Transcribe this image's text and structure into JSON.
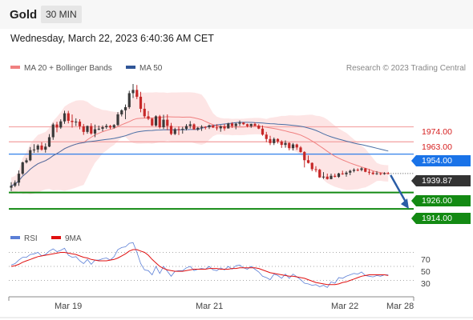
{
  "header": {
    "title": "Gold",
    "timeframe": "30 MIN",
    "datetime": "Wednesday, March 22, 2023 6:40:36 AM CET"
  },
  "legend": {
    "ma20_bb": "MA 20 + Bollinger Bands",
    "ma50": "MA 50",
    "rsi": "RSI",
    "ma9": "9MA"
  },
  "copyright": "Research © 2023 Trading Central",
  "colors": {
    "up": "#3a3a3a",
    "down": "#c62828",
    "ma20": "#f08080",
    "band": "#fde0e0",
    "ma50": "#4a6fa5",
    "resistance": "#f4a8a8",
    "pivot": "#1a73e8",
    "support": "#138a13",
    "rsi": "#5b7fd6",
    "rsi_ma": "#e01010",
    "arrow": "#2b5da6",
    "last": "#333333"
  },
  "chart_data": {
    "type": "candlestick",
    "instrument": "Gold",
    "interval": "30 MIN",
    "ylim": [
      1900,
      2010
    ],
    "x_ticks": [
      "Mar 19",
      "Mar 21",
      "Mar 22",
      "Mar 28"
    ],
    "levels": [
      {
        "value": 1974.0,
        "label": "1974.00",
        "kind": "resistance"
      },
      {
        "value": 1963.0,
        "label": "1963.00",
        "kind": "resistance"
      },
      {
        "value": 1954.0,
        "label": "1954.00",
        "kind": "pivot"
      },
      {
        "value": 1926.0,
        "label": "1926.00",
        "kind": "support"
      },
      {
        "value": 1914.0,
        "label": "1914.00",
        "kind": "support"
      }
    ],
    "last_price": {
      "value": 1939.87,
      "label": "1939.87"
    },
    "candles": [
      [
        1929.5,
        1933.5,
        1927.0,
        1930.9
      ],
      [
        1930.9,
        1934.8,
        1929.9,
        1933.2
      ],
      [
        1933.2,
        1942.1,
        1930.9,
        1939.7
      ],
      [
        1939.7,
        1948.5,
        1938.8,
        1948.0
      ],
      [
        1948.0,
        1951.1,
        1947.2,
        1949.5
      ],
      [
        1949.5,
        1959.2,
        1948.8,
        1956.9
      ],
      [
        1956.9,
        1961.3,
        1955.0,
        1957.4
      ],
      [
        1957.4,
        1961.3,
        1955.2,
        1960.3
      ],
      [
        1960.3,
        1962.7,
        1956.5,
        1957.3
      ],
      [
        1957.3,
        1961.9,
        1955.1,
        1959.5
      ],
      [
        1959.5,
        1968.7,
        1959.1,
        1966.4
      ],
      [
        1966.4,
        1976.9,
        1964.5,
        1975.7
      ],
      [
        1975.7,
        1977.7,
        1970.0,
        1973.5
      ],
      [
        1973.5,
        1979.5,
        1972.5,
        1978.0
      ],
      [
        1978.0,
        1985.8,
        1976.2,
        1983.9
      ],
      [
        1983.9,
        1985.7,
        1976.5,
        1978.4
      ],
      [
        1978.4,
        1983.0,
        1973.4,
        1977.5
      ],
      [
        1977.5,
        1980.2,
        1974.6,
        1977.8
      ],
      [
        1977.8,
        1979.6,
        1972.2,
        1974.4
      ],
      [
        1974.4,
        1976.1,
        1968.1,
        1970.3
      ],
      [
        1970.3,
        1975.0,
        1969.0,
        1974.6
      ],
      [
        1974.6,
        1976.6,
        1968.2,
        1969.1
      ],
      [
        1969.1,
        1975.6,
        1966.4,
        1972.2
      ],
      [
        1972.2,
        1974.9,
        1971.5,
        1972.6
      ],
      [
        1972.6,
        1975.0,
        1970.7,
        1973.7
      ],
      [
        1973.7,
        1976.1,
        1972.5,
        1974.7
      ],
      [
        1974.7,
        1975.4,
        1972.3,
        1973.5
      ],
      [
        1973.5,
        1976.0,
        1972.8,
        1975.3
      ],
      [
        1975.3,
        1984.7,
        1974.6,
        1983.1
      ],
      [
        1983.1,
        1986.8,
        1981.6,
        1986.1
      ],
      [
        1986.1,
        1990.3,
        1979.6,
        1988.4
      ],
      [
        1988.4,
        2000.4,
        1987.1,
        1998.6
      ],
      [
        1998.6,
        2005.3,
        1995.1,
        2001.0
      ],
      [
        2001.0,
        2004.6,
        1994.3,
        1996.0
      ],
      [
        1996.0,
        1999.6,
        1984.6,
        1987.2
      ],
      [
        1987.2,
        1991.4,
        1980.4,
        1981.7
      ],
      [
        1981.7,
        1985.6,
        1978.9,
        1979.9
      ],
      [
        1979.9,
        1980.6,
        1974.5,
        1975.0
      ],
      [
        1975.0,
        1982.4,
        1974.1,
        1981.7
      ],
      [
        1981.7,
        1982.7,
        1972.7,
        1973.7
      ],
      [
        1973.7,
        1982.8,
        1972.4,
        1979.2
      ],
      [
        1979.2,
        1983.1,
        1971.6,
        1974.7
      ],
      [
        1974.7,
        1976.9,
        1967.9,
        1968.8
      ],
      [
        1968.8,
        1973.3,
        1968.0,
        1972.3
      ],
      [
        1972.3,
        1974.3,
        1968.0,
        1972.1
      ],
      [
        1972.1,
        1974.0,
        1969.0,
        1972.5
      ],
      [
        1972.5,
        1976.0,
        1971.4,
        1974.6
      ],
      [
        1974.6,
        1978.2,
        1972.8,
        1975.8
      ],
      [
        1975.8,
        1976.5,
        1971.8,
        1972.1
      ],
      [
        1972.1,
        1974.0,
        1971.1,
        1973.3
      ],
      [
        1973.3,
        1975.2,
        1971.0,
        1974.0
      ],
      [
        1974.0,
        1974.4,
        1972.1,
        1973.7
      ],
      [
        1973.7,
        1975.6,
        1972.4,
        1975.1
      ],
      [
        1975.1,
        1975.2,
        1973.1,
        1973.5
      ],
      [
        1973.5,
        1975.9,
        1971.4,
        1972.9
      ],
      [
        1972.9,
        1975.2,
        1970.4,
        1974.3
      ],
      [
        1974.3,
        1976.1,
        1971.2,
        1972.8
      ],
      [
        1972.8,
        1977.0,
        1972.8,
        1976.4
      ],
      [
        1976.4,
        1977.4,
        1973.2,
        1974.6
      ],
      [
        1974.6,
        1976.9,
        1972.2,
        1976.3
      ],
      [
        1976.3,
        1978.6,
        1974.6,
        1977.1
      ],
      [
        1977.1,
        1977.4,
        1975.3,
        1975.9
      ],
      [
        1975.9,
        1976.3,
        1973.6,
        1974.6
      ],
      [
        1974.6,
        1976.3,
        1973.3,
        1976.1
      ],
      [
        1976.1,
        1977.2,
        1974.4,
        1974.8
      ],
      [
        1974.8,
        1975.9,
        1972.3,
        1972.7
      ],
      [
        1972.7,
        1975.0,
        1967.5,
        1968.3
      ],
      [
        1968.3,
        1970.3,
        1962.8,
        1965.1
      ],
      [
        1965.1,
        1967.4,
        1960.6,
        1962.1
      ],
      [
        1962.1,
        1966.2,
        1960.7,
        1965.1
      ],
      [
        1965.1,
        1965.6,
        1961.8,
        1963.3
      ],
      [
        1963.3,
        1964.2,
        1958.6,
        1960.8
      ],
      [
        1960.8,
        1964.1,
        1958.7,
        1962.2
      ],
      [
        1962.2,
        1962.7,
        1956.8,
        1958.4
      ],
      [
        1958.4,
        1962.2,
        1956.7,
        1961.1
      ],
      [
        1961.1,
        1961.7,
        1957.1,
        1958.9
      ],
      [
        1958.9,
        1959.9,
        1955.1,
        1955.6
      ],
      [
        1955.6,
        1956.2,
        1944.3,
        1949.6
      ],
      [
        1949.6,
        1953.0,
        1947.2,
        1947.6
      ],
      [
        1947.6,
        1948.0,
        1941.6,
        1943.0
      ],
      [
        1943.0,
        1945.2,
        1940.8,
        1942.6
      ],
      [
        1942.6,
        1943.3,
        1936.6,
        1937.0
      ],
      [
        1937.0,
        1940.9,
        1935.9,
        1937.6
      ],
      [
        1937.6,
        1939.8,
        1935.4,
        1935.8
      ],
      [
        1935.8,
        1939.8,
        1935.6,
        1938.2
      ],
      [
        1938.2,
        1939.8,
        1937.0,
        1937.4
      ],
      [
        1937.4,
        1940.4,
        1936.7,
        1939.9
      ],
      [
        1939.9,
        1941.9,
        1938.9,
        1939.3
      ],
      [
        1939.3,
        1941.6,
        1937.5,
        1940.5
      ],
      [
        1940.5,
        1942.6,
        1938.6,
        1941.8
      ],
      [
        1941.8,
        1943.7,
        1940.7,
        1942.6
      ],
      [
        1942.6,
        1943.7,
        1941.5,
        1942.5
      ],
      [
        1942.5,
        1944.5,
        1941.5,
        1943.6
      ],
      [
        1943.6,
        1943.9,
        1940.8,
        1941.1
      ],
      [
        1941.1,
        1943.1,
        1938.9,
        1940.5
      ],
      [
        1940.5,
        1941.6,
        1938.9,
        1939.5
      ],
      [
        1939.5,
        1941.6,
        1938.8,
        1940.0
      ],
      [
        1940.0,
        1940.6,
        1938.6,
        1939.4
      ],
      [
        1939.4,
        1940.8,
        1939.0,
        1940.0
      ],
      [
        1940.0,
        1941.0,
        1939.4,
        1939.87
      ]
    ],
    "rsi": {
      "ylim": [
        10,
        90
      ],
      "levels": [
        70,
        50,
        30
      ],
      "level_labels": [
        "70",
        "50",
        "30"
      ],
      "values": [
        52,
        54,
        59,
        63,
        63,
        67,
        68,
        70,
        65,
        67,
        72,
        75,
        71,
        73,
        76,
        66,
        63,
        64,
        58,
        54,
        60,
        53,
        59,
        59,
        61,
        62,
        59,
        64,
        74,
        77,
        78,
        83,
        84,
        70,
        54,
        45,
        44,
        38,
        50,
        40,
        50,
        43,
        36,
        43,
        44,
        44,
        48,
        50,
        44,
        46,
        47,
        46,
        50,
        45,
        44,
        48,
        45,
        50,
        46,
        51,
        52,
        48,
        46,
        50,
        46,
        42,
        36,
        34,
        31,
        39,
        37,
        33,
        39,
        33,
        39,
        35,
        31,
        26,
        25,
        23,
        24,
        21,
        23,
        20,
        28,
        26,
        34,
        33,
        36,
        38,
        40,
        39,
        42,
        37,
        36,
        35,
        37,
        36,
        38,
        38
      ],
      "ma9": [
        50,
        51,
        53,
        56,
        58,
        60,
        62,
        64,
        65,
        66,
        67,
        68,
        69,
        70,
        70,
        69,
        68,
        67,
        65,
        63,
        62,
        60,
        59,
        58,
        58,
        58,
        59,
        60,
        62,
        65,
        68,
        72,
        74,
        74,
        72,
        70,
        66,
        60,
        55,
        50,
        47,
        45,
        44,
        43,
        43,
        43,
        44,
        45,
        46,
        46,
        46,
        46,
        47,
        47,
        47,
        46,
        46,
        46,
        47,
        47,
        48,
        48,
        48,
        48,
        48,
        47,
        45,
        43,
        41,
        40,
        39,
        38,
        37,
        36,
        36,
        35,
        34,
        33,
        31,
        29,
        27,
        26,
        25,
        24,
        24,
        24,
        25,
        27,
        28,
        30,
        32,
        34,
        36,
        37,
        38,
        38,
        38,
        38,
        38,
        37
      ]
    }
  }
}
